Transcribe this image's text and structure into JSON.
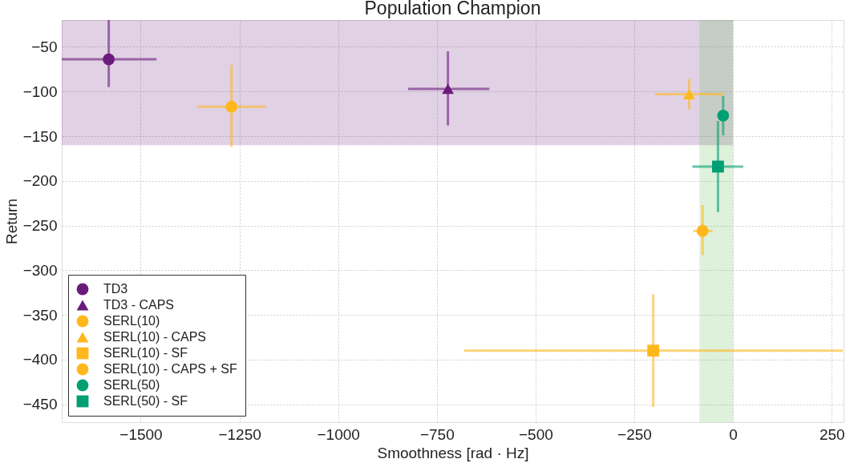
{
  "chart_data": {
    "type": "scatter",
    "title": "Population Champion",
    "xlabel": "Smoothness [rad · Hz]",
    "ylabel": "Return",
    "xlim": [
      -1700,
      280
    ],
    "ylim": [
      -470,
      -20
    ],
    "xticks": [
      -1500,
      -1250,
      -1000,
      -750,
      -500,
      -250,
      0,
      250
    ],
    "yticks": [
      -450,
      -400,
      -350,
      -300,
      -250,
      -200,
      -150,
      -100,
      -50
    ],
    "grid": true,
    "legend": "bottom left",
    "bands": [
      {
        "axis": "y",
        "from": -160,
        "to": -20,
        "color": "#6b1b7b"
      },
      {
        "axis": "x",
        "from": -85,
        "to": 0,
        "color": "#5cb84c"
      }
    ],
    "series": [
      {
        "name": "TD3",
        "color": "#6b1b7b",
        "marker": "circle",
        "x": [
          -1581
        ],
        "values": [
          -64
        ],
        "errors": [
          [
            -95,
            -20
          ]
        ],
        "xerrors": [
          [
            -1700,
            -1460
          ]
        ]
      },
      {
        "name": "TD3 - CAPS",
        "color": "#6b1b7b",
        "marker": "triangle",
        "x": [
          -722
        ],
        "values": [
          -97
        ],
        "errors": [
          [
            -138,
            -55
          ]
        ],
        "xerrors": [
          [
            -823,
            -617
          ]
        ]
      },
      {
        "name": "SERL(10)",
        "color": "#ffb81c",
        "marker": "circle",
        "x": [
          -1270
        ],
        "values": [
          -117
        ],
        "errors": [
          [
            -162,
            -70
          ]
        ],
        "xerrors": [
          [
            -1357,
            -1183
          ]
        ]
      },
      {
        "name": "SERL(10) - CAPS",
        "color": "#ffb81c",
        "marker": "triangle",
        "x": [
          -111
        ],
        "values": [
          -103
        ],
        "errors": [
          [
            -120,
            -86
          ]
        ],
        "xerrors": [
          [
            -198,
            -24
          ]
        ]
      },
      {
        "name": "SERL(10) - SF",
        "color": "#ffb81c",
        "marker": "square",
        "x": [
          -202
        ],
        "values": [
          -390
        ],
        "errors": [
          [
            -453,
            -327
          ]
        ],
        "xerrors": [
          [
            -681,
            278
          ]
        ]
      },
      {
        "name": "SERL(10) - CAPS + SF",
        "color": "#ffb81c",
        "marker": "circle",
        "x": [
          -77
        ],
        "values": [
          -256
        ],
        "errors": [
          [
            -283,
            -227
          ]
        ],
        "xerrors": [
          [
            -101,
            -52
          ]
        ]
      },
      {
        "name": "SERL(50)",
        "color": "#009e73",
        "marker": "circle",
        "x": [
          -25
        ],
        "values": [
          -127
        ],
        "errors": [
          [
            -149,
            -105
          ]
        ]
      },
      {
        "name": "SERL(50) - SF",
        "color": "#009e73",
        "marker": "square",
        "x": [
          -38
        ],
        "values": [
          -184
        ],
        "errors": [
          [
            -235,
            -133
          ]
        ],
        "xerrors": [
          [
            -103,
            26
          ]
        ]
      }
    ]
  }
}
